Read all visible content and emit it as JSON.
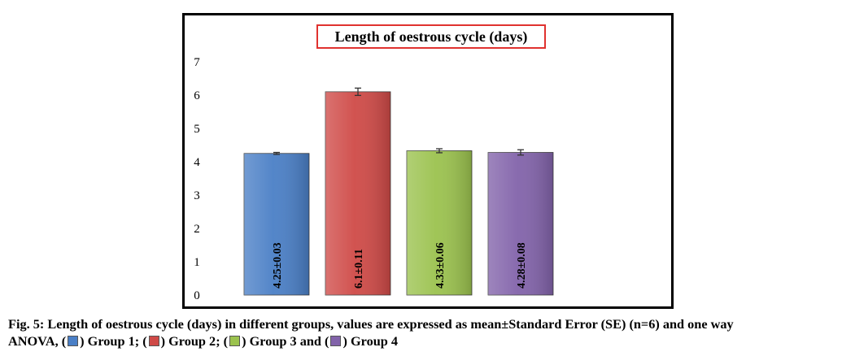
{
  "chart_data": {
    "type": "bar",
    "title": "Length of oestrous cycle (days)",
    "ylim": [
      0,
      7
    ],
    "yticks": [
      0,
      1,
      2,
      3,
      4,
      5,
      6,
      7
    ],
    "grid": false,
    "legend": "none",
    "values": [
      4.25,
      6.1,
      4.33,
      4.28
    ],
    "errors": [
      0.03,
      0.11,
      0.06,
      0.08
    ],
    "data_labels": [
      "4.25±0.03",
      "6.1±0.11",
      "4.33±0.06",
      "4.28±0.08"
    ],
    "colors": [
      "#4a7fc6",
      "#cf4a47",
      "#9bc24e",
      "#8263aa"
    ]
  },
  "caption": {
    "line1": "Fig. 5: Length of oestrous cycle (days) in different groups, values are expressed as mean±Standard Error (SE) (n=6) and one way",
    "line2_start": "ANOVA, (",
    "g1": ") Group 1; (",
    "g2": ") Group 2; (",
    "g3": ") Group 3 and (",
    "g4": ") Group 4"
  }
}
